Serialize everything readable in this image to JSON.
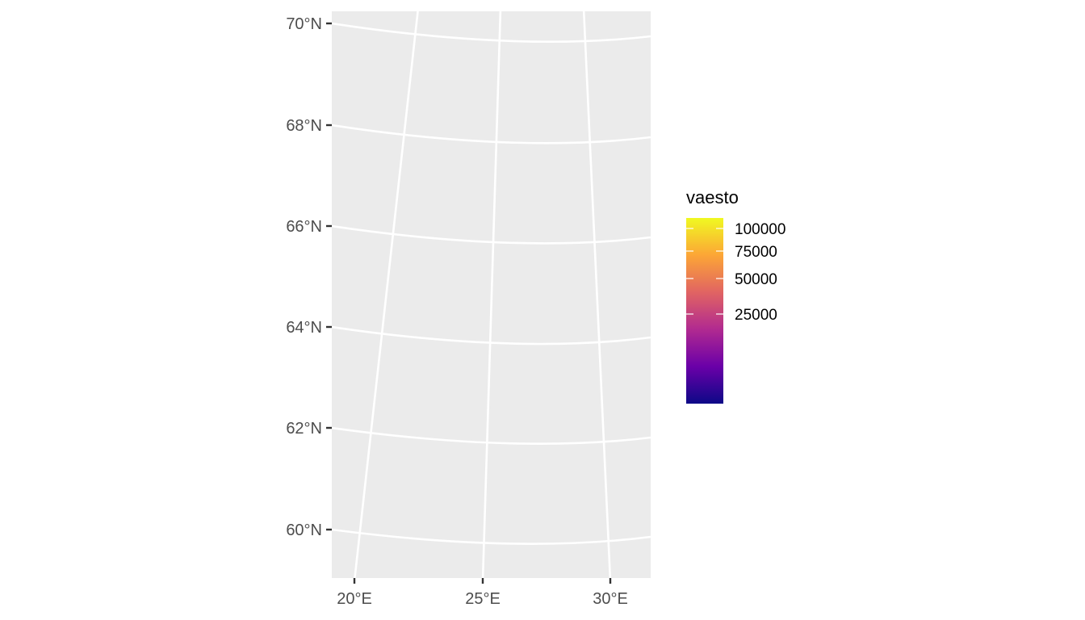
{
  "map": {
    "type": "graticule",
    "panel_background": "#ebebeb",
    "grid_color": "#ffffff",
    "axis_tick_color": "#333333",
    "latitude_labels": [
      "70°N",
      "68°N",
      "66°N",
      "64°N",
      "62°N",
      "60°N"
    ],
    "longitude_labels": [
      "20°E",
      "25°E",
      "30°E"
    ],
    "latitudes_deg": [
      70,
      68,
      66,
      64,
      62,
      60
    ],
    "longitudes_deg": [
      20,
      25,
      30
    ]
  },
  "legend": {
    "title": "vaesto",
    "colormap": "plasma",
    "gradient_colors": [
      "#0d0887",
      "#6a00a8",
      "#b12a90",
      "#e16462",
      "#fca636",
      "#f0f921"
    ],
    "breaks": [
      {
        "value": 100000,
        "label": "100000"
      },
      {
        "value": 75000,
        "label": "75000"
      },
      {
        "value": 50000,
        "label": "50000"
      },
      {
        "value": 25000,
        "label": "25000"
      }
    ]
  }
}
